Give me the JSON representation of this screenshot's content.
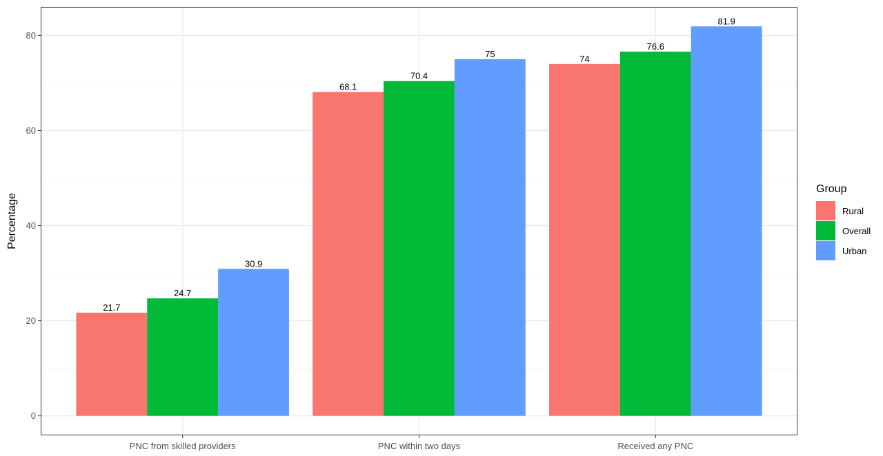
{
  "chart_data": {
    "type": "bar",
    "ylabel": "Percentage",
    "xlabel": "",
    "ylim": [
      -4.1,
      86.0
    ],
    "yticks": [
      0,
      20,
      40,
      60,
      80
    ],
    "grid": true,
    "legend": {
      "title": "Group",
      "placement": "right"
    },
    "categories": [
      "PNC from skilled providers",
      "PNC within two days",
      "Received any PNC"
    ],
    "series": [
      {
        "name": "Rural",
        "color": "#F8766D",
        "values": [
          21.7,
          68.1,
          74
        ],
        "labels": [
          "21.7",
          "68.1",
          "74"
        ]
      },
      {
        "name": "Overall",
        "color": "#00BA38",
        "values": [
          24.7,
          70.4,
          76.6
        ],
        "labels": [
          "24.7",
          "70.4",
          "76.6"
        ]
      },
      {
        "name": "Urban",
        "color": "#619CFF",
        "values": [
          30.9,
          75,
          81.9
        ],
        "labels": [
          "30.9",
          "75",
          "81.9"
        ]
      }
    ]
  }
}
